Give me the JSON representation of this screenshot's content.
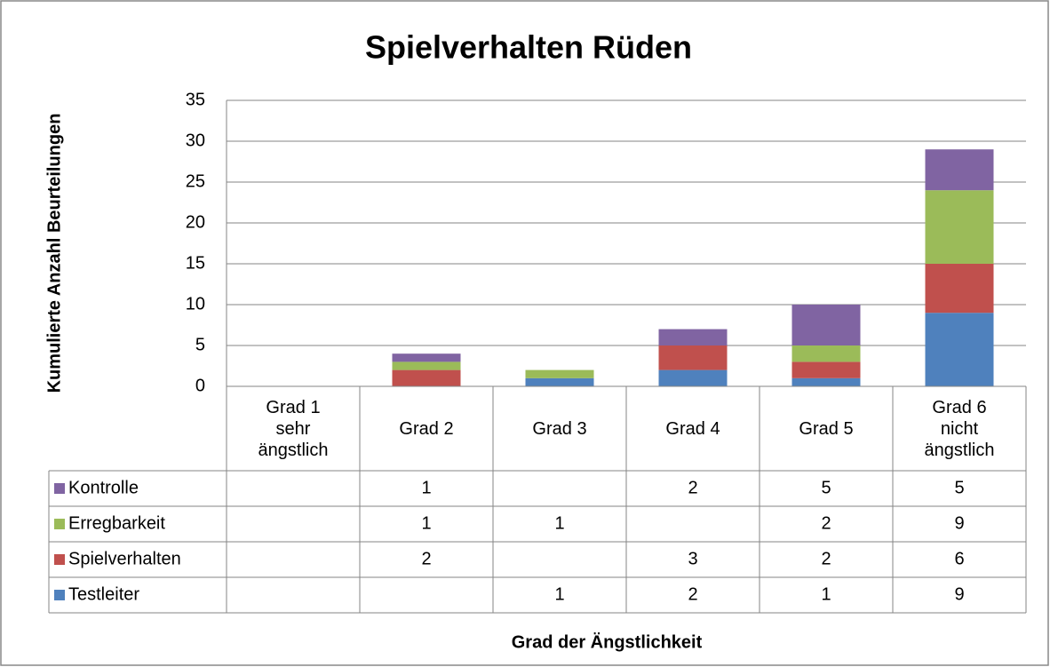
{
  "chart_data": {
    "type": "stacked_bar",
    "title": "Spielverhalten Rüden",
    "y_label": "Kumulierte Anzahl Beurteilungen",
    "x_label": "Grad der Ängstlichkeit",
    "categories": [
      "Grad 1\nsehr\nängstlich",
      "Grad 2",
      "Grad 3",
      "Grad 4",
      "Grad 5",
      "Grad 6\nnicht\nängstlich"
    ],
    "series": [
      {
        "name": "Testleiter",
        "color": "#4f81bd",
        "values": [
          null,
          null,
          1,
          2,
          1,
          9
        ]
      },
      {
        "name": "Spielverhalten",
        "color": "#c0504d",
        "values": [
          null,
          2,
          null,
          3,
          2,
          6
        ]
      },
      {
        "name": "Erregbarkeit",
        "color": "#9bbb59",
        "values": [
          null,
          1,
          1,
          null,
          2,
          9
        ]
      },
      {
        "name": "Kontrolle",
        "color": "#8064a2",
        "values": [
          null,
          1,
          null,
          2,
          5,
          5
        ]
      }
    ],
    "ylim": [
      0,
      35
    ],
    "yticks": [
      0,
      5,
      10,
      15,
      20,
      25,
      30,
      35
    ],
    "grid": true,
    "legend": "table"
  }
}
